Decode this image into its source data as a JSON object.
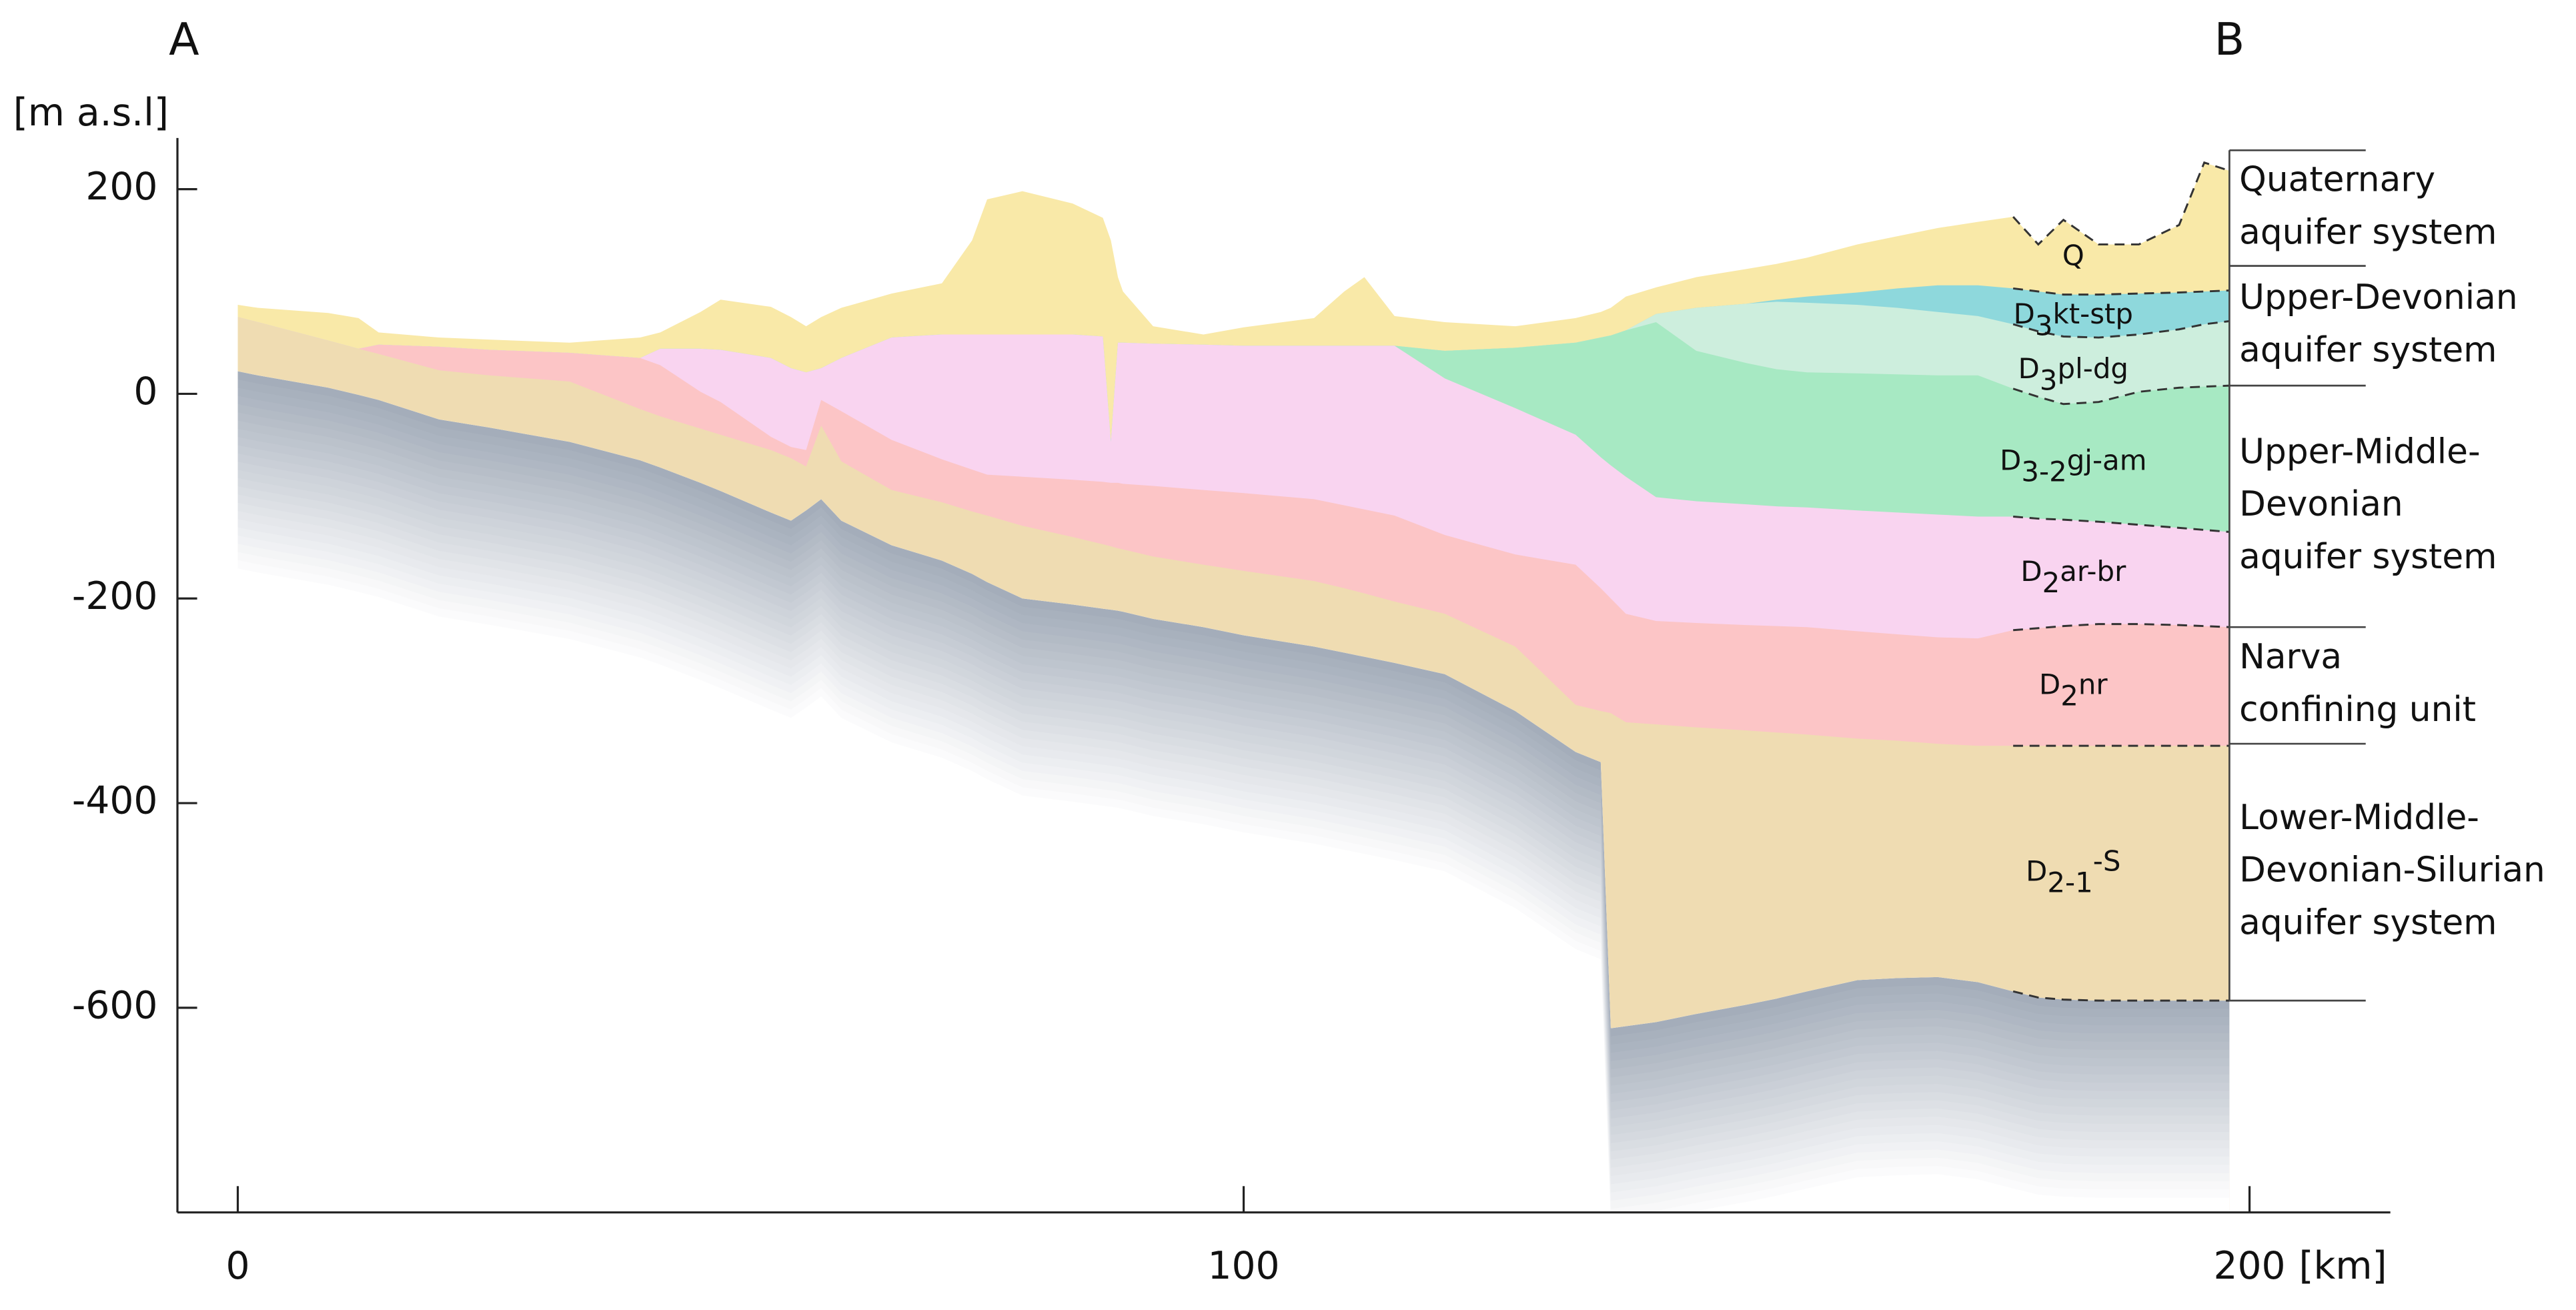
{
  "chart_data": {
    "type": "area",
    "section_start": "A",
    "section_end": "B",
    "ylabel": "[m a.s.l]",
    "xlabel": "[km]",
    "xlim": [
      -6,
      214
    ],
    "ylim": [
      -800,
      250
    ],
    "xticks": [
      0,
      100,
      200
    ],
    "yticks": [
      -600,
      -400,
      -200,
      0,
      200
    ],
    "x": [
      0,
      2,
      9,
      12,
      14,
      20,
      25,
      33,
      40,
      42,
      46,
      48,
      53,
      55,
      56.5,
      58,
      60,
      65,
      70,
      73,
      74.5,
      78,
      83,
      86,
      86.8,
      87.5,
      88,
      91,
      96,
      100,
      107,
      110,
      112,
      115,
      120,
      127,
      133,
      135.5,
      136.5,
      138,
      141,
      145,
      150,
      153,
      156,
      161,
      165,
      169,
      173,
      176.5,
      179,
      181.5,
      185,
      189,
      193,
      195.5,
      198
    ],
    "series": [
      {
        "label_parts": [
          {
            "text": "Q"
          }
        ],
        "color": "#f9e9a8",
        "values": [
          87,
          84,
          79,
          74,
          60,
          55,
          53,
          50,
          55,
          60,
          80,
          92,
          85,
          75,
          66,
          75,
          84,
          98,
          108,
          150,
          190,
          198,
          186,
          172,
          150,
          114,
          100,
          66,
          58,
          65,
          74,
          100,
          114,
          76,
          70,
          66,
          74,
          80,
          84,
          95,
          104,
          114,
          122,
          127,
          133,
          146,
          154,
          162,
          168,
          173,
          146,
          170,
          146,
          146,
          165,
          226,
          218
        ]
      },
      {
        "label_parts": [
          {
            "text": "D"
          },
          {
            "text": "3",
            "sub": true
          },
          {
            "text": "kt-stp"
          }
        ],
        "color": "#8ed8dc",
        "values": [
          75,
          70,
          52,
          44,
          48,
          46,
          43,
          40,
          35,
          44,
          44,
          43,
          35,
          25,
          21,
          25,
          35,
          55,
          58,
          58,
          58,
          58,
          58,
          56,
          -47,
          50,
          50,
          49,
          48,
          47,
          47,
          47,
          47,
          47,
          42,
          45,
          50,
          55,
          57,
          62,
          78,
          84,
          88,
          92,
          95,
          99,
          103,
          106,
          106,
          103,
          100,
          97,
          97,
          98,
          99,
          100,
          101
        ]
      },
      {
        "label_parts": [
          {
            "text": "D"
          },
          {
            "text": "3",
            "sub": true
          },
          {
            "text": "pl-dg"
          }
        ],
        "color": "#cdeedd",
        "values": [
          75,
          70,
          52,
          44,
          48,
          46,
          43,
          40,
          35,
          44,
          44,
          43,
          35,
          25,
          21,
          25,
          35,
          55,
          58,
          58,
          58,
          58,
          58,
          56,
          -47,
          50,
          50,
          49,
          48,
          47,
          47,
          47,
          47,
          47,
          42,
          45,
          50,
          55,
          57,
          62,
          78,
          84,
          88,
          90,
          89,
          87,
          84,
          80,
          76,
          68,
          61,
          56,
          55,
          58,
          63,
          68,
          71
        ]
      },
      {
        "label_parts": [
          {
            "text": "D"
          },
          {
            "text": "3-2",
            "sub": true
          },
          {
            "text": "gj-am"
          }
        ],
        "color": "#a7e9c3",
        "values": [
          75,
          70,
          52,
          44,
          48,
          46,
          43,
          40,
          35,
          44,
          44,
          43,
          35,
          25,
          21,
          25,
          35,
          55,
          58,
          58,
          58,
          58,
          58,
          56,
          -47,
          50,
          50,
          49,
          48,
          47,
          47,
          47,
          47,
          47,
          42,
          45,
          50,
          55,
          57,
          62,
          70,
          42,
          30,
          24,
          21,
          20,
          19,
          18,
          18,
          5,
          -3,
          -10,
          -8,
          2,
          6,
          7,
          8
        ]
      },
      {
        "label_parts": [
          {
            "text": "D"
          },
          {
            "text": "2",
            "sub": true
          },
          {
            "text": "ar-br"
          }
        ],
        "color": "#f9d4f0",
        "values": [
          75,
          70,
          52,
          44,
          48,
          46,
          43,
          40,
          35,
          44,
          44,
          43,
          35,
          25,
          21,
          25,
          35,
          55,
          58,
          58,
          58,
          58,
          58,
          56,
          -47,
          50,
          50,
          49,
          48,
          47,
          47,
          47,
          47,
          47,
          15,
          -14,
          -40,
          -62,
          -70,
          -81,
          -101,
          -105,
          -108,
          -110,
          -111,
          -114,
          -116,
          -118,
          -120,
          -120,
          -122,
          -123,
          -125,
          -128,
          -131,
          -133,
          -135
        ]
      },
      {
        "label_parts": [
          {
            "text": "D"
          },
          {
            "text": "2",
            "sub": true
          },
          {
            "text": "nr"
          }
        ],
        "color": "#fcc5c6",
        "values": [
          75,
          70,
          52,
          44,
          48,
          46,
          43,
          40,
          35,
          28,
          2,
          -8,
          -42,
          -52,
          -55,
          -6,
          -17,
          -45,
          -64,
          -74,
          -79,
          -81,
          -84,
          -86,
          -87,
          -87,
          -88,
          -90,
          -94,
          -97,
          -103,
          -109,
          -113,
          -119,
          -138,
          -157,
          -167,
          -190,
          -200,
          -215,
          -222,
          -224,
          -226,
          -227,
          -228,
          -232,
          -235,
          -238,
          -239,
          -231,
          -229,
          -227,
          -225,
          -225,
          -226,
          -227,
          -228
        ]
      },
      {
        "label_parts": [
          {
            "text": "D"
          },
          {
            "text": "2-1",
            "sub": true
          },
          {
            "text": "-S",
            "sup": true
          }
        ],
        "color": "#efdcb2",
        "values": [
          75,
          70,
          52,
          44,
          39,
          23,
          18,
          12,
          -15,
          -22,
          -34,
          -40,
          -55,
          -63,
          -71,
          -31,
          -66,
          -94,
          -106,
          -115,
          -119,
          -129,
          -140,
          -147,
          -149,
          -151,
          -152,
          -159,
          -167,
          -173,
          -183,
          -190,
          -195,
          -203,
          -215,
          -247,
          -304,
          -310,
          -312,
          -321,
          -323,
          -326,
          -329,
          -331,
          -333,
          -337,
          -339,
          -342,
          -344,
          -344,
          -344,
          -344,
          -344,
          -344,
          -344,
          -344,
          -344
        ]
      },
      {
        "color": "#a4adba",
        "fade": true,
        "values": [
          22,
          18,
          6,
          -1,
          -6,
          -25,
          -33,
          -47,
          -65,
          -72,
          -87,
          -95,
          -116,
          -124,
          -114,
          -103,
          -124,
          -148,
          -163,
          -176,
          -184,
          -200,
          -206,
          -210,
          -211,
          -212,
          -213,
          -220,
          -228,
          -236,
          -247,
          -253,
          -257,
          -263,
          -274,
          -310,
          -350,
          -360,
          -620,
          -618,
          -614,
          -606,
          -597,
          -591,
          -584,
          -573,
          -571,
          -570,
          -575,
          -584,
          -590,
          -592,
          -593,
          -593,
          -593,
          -593,
          -593
        ]
      }
    ],
    "unit_bounds": [
      238,
      125,
      8,
      -228,
      -342,
      -593
    ],
    "units": [
      {
        "lines": [
          "Quaternary",
          "aquifer system"
        ]
      },
      {
        "lines": [
          "Upper-Devonian",
          "aquifer system"
        ]
      },
      {
        "lines": [
          "Upper-Middle-",
          "Devonian",
          "aquifer system"
        ]
      },
      {
        "lines": [
          "Narva",
          "confining unit"
        ]
      },
      {
        "lines": [
          "Lower-Middle-",
          "Devonian-Silurian",
          "aquifer system"
        ]
      }
    ]
  }
}
